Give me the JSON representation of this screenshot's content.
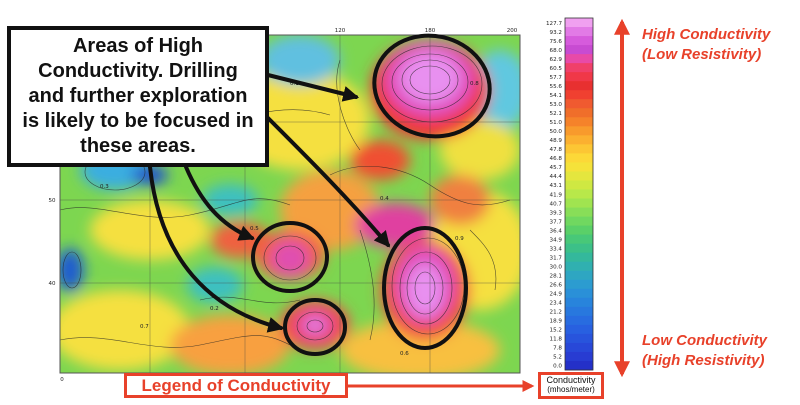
{
  "callout": {
    "text": "Areas of High Conductivity. Drilling and further exploration is likely to be focused in these areas."
  },
  "legend_title": "Legend of Conductivity",
  "colorbar": {
    "title": "Conductivity",
    "unit": "(mhos/meter)",
    "values": [
      "127.7",
      "93.2",
      "75.6",
      "68.0",
      "62.9",
      "60.5",
      "57.7",
      "55.6",
      "54.1",
      "53.0",
      "52.1",
      "51.0",
      "50.0",
      "48.9",
      "47.8",
      "46.8",
      "45.7",
      "44.4",
      "43.1",
      "41.9",
      "40.7",
      "39.3",
      "37.7",
      "36.4",
      "34.9",
      "33.4",
      "31.7",
      "30.0",
      "28.1",
      "26.6",
      "24.9",
      "23.4",
      "21.2",
      "18.9",
      "15.2",
      "11.8",
      "7.8",
      "5.2",
      "0.0"
    ],
    "colors": [
      "#f0a0f0",
      "#e27ae6",
      "#d65bdc",
      "#c84bd2",
      "#e84aa8",
      "#f0406a",
      "#f03848",
      "#e83030",
      "#f04030",
      "#f05a30",
      "#f06e2a",
      "#f5822a",
      "#f89a2c",
      "#fbb030",
      "#fcc634",
      "#fcd838",
      "#f5e23a",
      "#e4e63e",
      "#cfe842",
      "#b8e84a",
      "#a0e450",
      "#88de58",
      "#70d860",
      "#5ad068",
      "#48c878",
      "#3cc088",
      "#34b89c",
      "#30b0b0",
      "#2ea6c2",
      "#2c9cd0",
      "#2a90d8",
      "#2884dc",
      "#2878de",
      "#286ce0",
      "#2860e0",
      "#2854dc",
      "#2848d8",
      "#283cd2",
      "#2430c8"
    ]
  },
  "annotations": {
    "high": [
      "High Conductivity",
      "(Low Resistivity)"
    ],
    "low": [
      "Low Conductivity",
      "(High Resistivity)"
    ]
  },
  "map": {
    "top_ticks": [
      "120",
      "180",
      "200"
    ],
    "left_ticks": [
      "50",
      "40"
    ],
    "bottom_tick": "0",
    "contour_labels": [
      "0.1",
      "0.3",
      "0.8",
      "0.4",
      "0.7",
      "0.5",
      "0.6",
      "0.9",
      "0.2"
    ]
  },
  "colors": {
    "accent_red": "#e8412a",
    "outline": "#111111"
  }
}
